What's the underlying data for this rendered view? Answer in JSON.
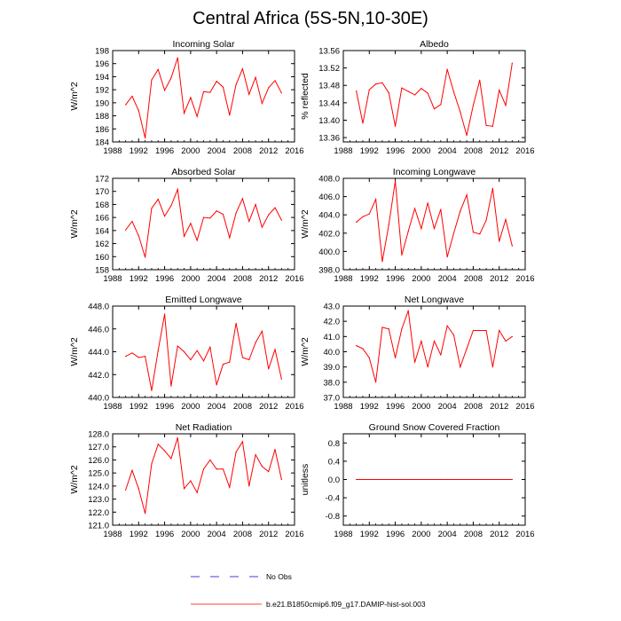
{
  "page": {
    "title": "Central Africa (5S-5N,10-30E)"
  },
  "colors": {
    "model_line": "#ff0000",
    "obs_line": "#0000cc"
  },
  "legend": {
    "obs_label": "No Obs",
    "model_label": "b.e21.B1850cmip6.f09_g17.DAMIP-hist-sol.003"
  },
  "chart_data": [
    {
      "type": "line",
      "title": "Incoming Solar",
      "ylabel": "W/m^2",
      "xlim": [
        1988,
        2016
      ],
      "ylim": [
        184,
        198
      ],
      "x_ticks": [
        "1988",
        "1992",
        "1996",
        "2000",
        "2004",
        "2008",
        "2012",
        "2016"
      ],
      "y_ticks": [
        "184",
        "186",
        "188",
        "190",
        "192",
        "194",
        "196",
        "198"
      ],
      "x": [
        1990,
        1991,
        1992,
        1993,
        1994,
        1995,
        1996,
        1997,
        1998,
        1999,
        2000,
        2001,
        2002,
        2003,
        2004,
        2005,
        2006,
        2007,
        2008,
        2009,
        2010,
        2011,
        2012,
        2013,
        2014
      ],
      "series": [
        {
          "values": [
            189.7,
            191.0,
            188.8,
            184.6,
            193.5,
            195.1,
            191.9,
            193.8,
            196.9,
            188.4,
            190.8,
            187.9,
            191.7,
            191.6,
            193.3,
            192.4,
            188.1,
            192.8,
            195.2,
            191.3,
            193.9,
            189.9,
            192.3,
            193.4,
            191.5
          ]
        }
      ]
    },
    {
      "type": "line",
      "title": "Albedo",
      "ylabel": "% reflected",
      "xlim": [
        1988,
        2016
      ],
      "ylim": [
        13.35,
        13.56
      ],
      "x_ticks": [
        "1988",
        "1992",
        "1996",
        "2000",
        "2004",
        "2008",
        "2012",
        "2016"
      ],
      "y_ticks": [
        "13.36",
        "13.40",
        "13.44",
        "13.48",
        "13.52",
        "13.56"
      ],
      "x": [
        1990,
        1991,
        1992,
        1993,
        1994,
        1995,
        1996,
        1997,
        1998,
        1999,
        2000,
        2001,
        2002,
        2003,
        2004,
        2005,
        2006,
        2007,
        2008,
        2009,
        2010,
        2011,
        2012,
        2013,
        2014
      ],
      "series": [
        {
          "values": [
            13.467,
            13.393,
            13.47,
            13.483,
            13.486,
            13.463,
            13.386,
            13.474,
            13.466,
            13.458,
            13.473,
            13.462,
            13.426,
            13.436,
            13.517,
            13.465,
            13.419,
            13.365,
            13.434,
            13.492,
            13.388,
            13.386,
            13.469,
            13.434,
            13.531
          ]
        }
      ]
    },
    {
      "type": "line",
      "title": "Absorbed Solar",
      "ylabel": "W/m^2",
      "xlim": [
        1988,
        2016
      ],
      "ylim": [
        158,
        172
      ],
      "x_ticks": [
        "1988",
        "1992",
        "1996",
        "2000",
        "2004",
        "2008",
        "2012",
        "2016"
      ],
      "y_ticks": [
        "158",
        "160",
        "162",
        "164",
        "166",
        "168",
        "170",
        "172"
      ],
      "x": [
        1990,
        1991,
        1992,
        1993,
        1994,
        1995,
        1996,
        1997,
        1998,
        1999,
        2000,
        2001,
        2002,
        2003,
        2004,
        2005,
        2006,
        2007,
        2008,
        2009,
        2010,
        2011,
        2012,
        2013,
        2014
      ],
      "series": [
        {
          "values": [
            164.1,
            165.4,
            163.2,
            159.9,
            167.4,
            168.8,
            166.2,
            167.8,
            170.3,
            163.1,
            165.1,
            162.5,
            166.0,
            165.9,
            167.0,
            166.5,
            162.9,
            166.7,
            168.9,
            165.4,
            168.0,
            164.5,
            166.4,
            167.5,
            165.6
          ]
        }
      ]
    },
    {
      "type": "line",
      "title": "Incoming Longwave",
      "ylabel": "W/m^2",
      "xlim": [
        1988,
        2016
      ],
      "ylim": [
        398,
        408
      ],
      "x_ticks": [
        "1988",
        "1992",
        "1996",
        "2000",
        "2004",
        "2008",
        "2012",
        "2016"
      ],
      "y_ticks": [
        "398.0",
        "400.0",
        "402.0",
        "404.0",
        "406.0",
        "408.0"
      ],
      "x": [
        1990,
        1991,
        1992,
        1993,
        1994,
        1995,
        1996,
        1997,
        1998,
        1999,
        2000,
        2001,
        2002,
        2003,
        2004,
        2005,
        2006,
        2007,
        2008,
        2009,
        2010,
        2011,
        2012,
        2013,
        2014
      ],
      "series": [
        {
          "values": [
            403.2,
            403.8,
            404.1,
            405.7,
            398.9,
            402.9,
            407.7,
            399.6,
            402.2,
            404.7,
            402.5,
            405.3,
            402.5,
            404.6,
            399.4,
            402.0,
            404.4,
            406.2,
            402.1,
            401.9,
            403.4,
            406.9,
            401.1,
            403.5,
            400.6
          ]
        }
      ]
    },
    {
      "type": "line",
      "title": "Emitted Longwave",
      "ylabel": "W/m^2",
      "xlim": [
        1988,
        2016
      ],
      "ylim": [
        440,
        448
      ],
      "x_ticks": [
        "1988",
        "1992",
        "1996",
        "2000",
        "2004",
        "2008",
        "2012",
        "2016"
      ],
      "y_ticks": [
        "440.0",
        "442.0",
        "444.0",
        "446.0",
        "448.0"
      ],
      "x": [
        1990,
        1991,
        1992,
        1993,
        1994,
        1995,
        1996,
        1997,
        1998,
        1999,
        2000,
        2001,
        2002,
        2003,
        2004,
        2005,
        2006,
        2007,
        2008,
        2009,
        2010,
        2011,
        2012,
        2013,
        2014
      ],
      "series": [
        {
          "values": [
            443.6,
            443.9,
            443.5,
            443.6,
            440.6,
            444.1,
            447.3,
            441.0,
            444.5,
            444.0,
            443.3,
            444.1,
            443.2,
            444.4,
            441.1,
            442.9,
            443.1,
            446.5,
            443.5,
            443.3,
            444.8,
            445.8,
            442.5,
            444.2,
            441.6
          ]
        }
      ]
    },
    {
      "type": "line",
      "title": "Net Longwave",
      "ylabel": "W/m^2",
      "xlim": [
        1988,
        2016
      ],
      "ylim": [
        37,
        43
      ],
      "x_ticks": [
        "1988",
        "1992",
        "1996",
        "2000",
        "2004",
        "2008",
        "2012",
        "2016"
      ],
      "y_ticks": [
        "37.0",
        "38.0",
        "39.0",
        "40.0",
        "41.0",
        "42.0",
        "43.0"
      ],
      "x": [
        1990,
        1991,
        1992,
        1993,
        1994,
        1995,
        1996,
        1997,
        1998,
        1999,
        2000,
        2001,
        2002,
        2003,
        2004,
        2005,
        2006,
        2007,
        2008,
        2009,
        2010,
        2011,
        2012,
        2013,
        2014
      ],
      "series": [
        {
          "values": [
            40.4,
            40.2,
            39.6,
            38.0,
            41.6,
            41.5,
            39.6,
            41.5,
            42.7,
            39.3,
            40.7,
            39.0,
            40.7,
            39.8,
            41.7,
            41.1,
            39.0,
            40.2,
            41.4,
            41.4,
            41.4,
            39.0,
            41.4,
            40.7,
            41.0
          ]
        }
      ]
    },
    {
      "type": "line",
      "title": "Net Radiation",
      "ylabel": "W/m^2",
      "xlim": [
        1988,
        2016
      ],
      "ylim": [
        121,
        128
      ],
      "x_ticks": [
        "1988",
        "1992",
        "1996",
        "2000",
        "2004",
        "2008",
        "2012",
        "2016"
      ],
      "y_ticks": [
        "121.0",
        "122.0",
        "123.0",
        "124.0",
        "125.0",
        "126.0",
        "127.0",
        "128.0"
      ],
      "x": [
        1990,
        1991,
        1992,
        1993,
        1994,
        1995,
        1996,
        1997,
        1998,
        1999,
        2000,
        2001,
        2002,
        2003,
        2004,
        2005,
        2006,
        2007,
        2008,
        2009,
        2010,
        2011,
        2012,
        2013,
        2014
      ],
      "series": [
        {
          "values": [
            123.7,
            125.2,
            123.8,
            121.9,
            125.7,
            127.2,
            126.7,
            126.1,
            127.7,
            123.8,
            124.4,
            123.5,
            125.3,
            126.0,
            125.3,
            125.3,
            123.9,
            126.6,
            127.4,
            124.0,
            126.4,
            125.5,
            125.1,
            126.8,
            124.5
          ]
        }
      ]
    },
    {
      "type": "line",
      "title": "Ground Snow Covered Fraction",
      "ylabel": "unitless",
      "xlim": [
        1988,
        2016
      ],
      "ylim": [
        -1,
        1
      ],
      "x_ticks": [
        "1988",
        "1992",
        "1996",
        "2000",
        "2004",
        "2008",
        "2012",
        "2016"
      ],
      "y_ticks": [
        "-0.8",
        "-0.4",
        "0.0",
        "0.4",
        "0.8"
      ],
      "x": [
        1990,
        1991,
        1992,
        1993,
        1994,
        1995,
        1996,
        1997,
        1998,
        1999,
        2000,
        2001,
        2002,
        2003,
        2004,
        2005,
        2006,
        2007,
        2008,
        2009,
        2010,
        2011,
        2012,
        2013,
        2014
      ],
      "series": [
        {
          "values": [
            0,
            0,
            0,
            0,
            0,
            0,
            0,
            0,
            0,
            0,
            0,
            0,
            0,
            0,
            0,
            0,
            0,
            0,
            0,
            0,
            0,
            0,
            0,
            0,
            0
          ]
        }
      ]
    }
  ]
}
